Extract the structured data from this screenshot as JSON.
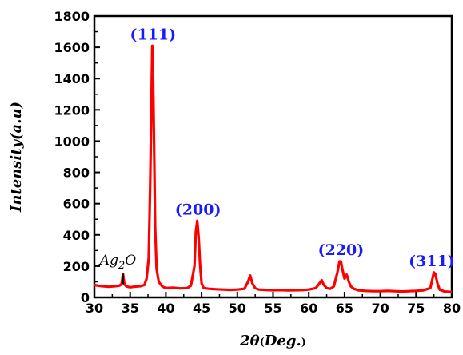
{
  "chart_data": {
    "type": "line",
    "title": "",
    "xlabel": {
      "main": "2θ",
      "unit": "Deg."
    },
    "ylabel": "Intensity(a.u)",
    "xlim": [
      30,
      80
    ],
    "ylim": [
      0,
      1800
    ],
    "x_ticks": [
      30,
      35,
      40,
      45,
      50,
      55,
      60,
      65,
      70,
      75,
      80
    ],
    "y_ticks": [
      0,
      200,
      400,
      600,
      800,
      1000,
      1200,
      1400,
      1600,
      1800
    ],
    "grid": false,
    "series": [
      {
        "color": "#ff0000",
        "x": [
          30,
          30.5,
          31,
          31.5,
          32,
          32.5,
          33,
          33.5,
          33.8,
          34.0,
          34.2,
          34.5,
          35,
          35.5,
          36,
          36.5,
          37,
          37.3,
          37.6,
          37.8,
          38.0,
          38.1,
          38.2,
          38.35,
          38.5,
          38.7,
          39.0,
          39.5,
          40,
          41,
          42,
          43,
          43.5,
          44.0,
          44.2,
          44.4,
          44.6,
          44.8,
          45.0,
          45.3,
          46,
          47,
          48,
          49,
          50,
          51,
          51.5,
          51.8,
          52.1,
          52.5,
          53,
          54,
          55,
          56,
          57,
          58,
          59,
          60,
          61,
          61.5,
          61.8,
          62.1,
          62.5,
          63,
          63.5,
          64.0,
          64.3,
          64.5,
          64.7,
          65.0,
          65.3,
          65.6,
          65.9,
          66.3,
          67,
          68,
          69,
          70,
          71,
          72,
          73,
          74,
          75,
          76,
          77,
          77.3,
          77.5,
          77.7,
          78.0,
          78.3,
          79,
          80
        ],
        "y": [
          80,
          75,
          72,
          70,
          68,
          70,
          72,
          75,
          85,
          150,
          85,
          70,
          65,
          68,
          70,
          72,
          80,
          120,
          250,
          700,
          1300,
          1610,
          1450,
          1000,
          450,
          180,
          100,
          70,
          60,
          62,
          58,
          60,
          75,
          200,
          420,
          490,
          380,
          200,
          90,
          60,
          55,
          52,
          50,
          48,
          50,
          55,
          100,
          140,
          90,
          60,
          50,
          48,
          46,
          47,
          45,
          46,
          47,
          50,
          60,
          90,
          110,
          80,
          60,
          55,
          70,
          160,
          230,
          230,
          180,
          120,
          145,
          100,
          70,
          55,
          45,
          42,
          40,
          40,
          42,
          40,
          38,
          40,
          42,
          45,
          60,
          120,
          160,
          150,
          90,
          50,
          38,
          35
        ]
      }
    ],
    "annotations": [
      {
        "text": "(111)",
        "x": 38.2,
        "y": 1650,
        "style": "peak"
      },
      {
        "text": "(200)",
        "x": 44.5,
        "y": 530,
        "style": "peak"
      },
      {
        "text": "(220)",
        "x": 64.5,
        "y": 270,
        "style": "peak"
      },
      {
        "text": "(311)",
        "x": 77.2,
        "y": 200,
        "style": "peak"
      },
      {
        "text": "Ag",
        "subscript": "2",
        "suffix": "O",
        "x": 33.3,
        "y": 210,
        "style": "phase"
      }
    ]
  }
}
